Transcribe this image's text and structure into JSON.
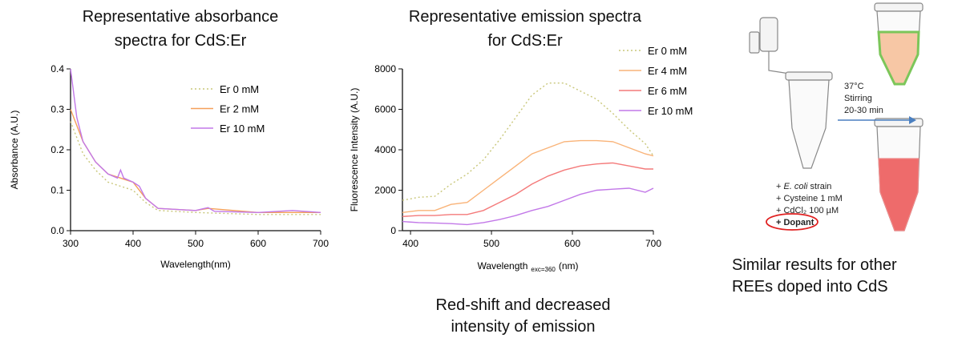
{
  "chart_data": [
    {
      "type": "line",
      "title": "Representative absorbance spectra for CdS:Er",
      "x_label": "Wavelength(nm)",
      "y_label": "Absorbance  (A.U.)",
      "xlim": [
        300,
        700
      ],
      "xticks": [
        300,
        400,
        500,
        600,
        700
      ],
      "ylim": [
        0,
        0.4
      ],
      "yticks": [
        {
          "value": 0,
          "label": "0.0"
        },
        0.1,
        0.2,
        0.3,
        0.4
      ],
      "legend": "upper right",
      "series": [
        {
          "name": "Er 0 mM",
          "color": "#c9c77a",
          "style": "dotted",
          "x": [
            300,
            320,
            340,
            360,
            380,
            400,
            420,
            440,
            500,
            600,
            700
          ],
          "values": [
            0.27,
            0.19,
            0.15,
            0.12,
            0.11,
            0.1,
            0.07,
            0.05,
            0.045,
            0.04,
            0.04
          ]
        },
        {
          "name": "Er 2 mM",
          "color": "#f5a05a",
          "style": "solid",
          "x": [
            300,
            320,
            340,
            360,
            380,
            390,
            400,
            420,
            440,
            500,
            520,
            600,
            700
          ],
          "values": [
            0.3,
            0.22,
            0.17,
            0.14,
            0.13,
            0.125,
            0.12,
            0.08,
            0.055,
            0.05,
            0.055,
            0.045,
            0.045
          ]
        },
        {
          "name": "Er 10 mM",
          "color": "#c278e8",
          "style": "solid",
          "x": [
            300,
            310,
            320,
            340,
            360,
            375,
            380,
            385,
            400,
            410,
            420,
            440,
            500,
            520,
            530,
            600,
            655,
            700
          ],
          "values": [
            0.4,
            0.28,
            0.22,
            0.17,
            0.14,
            0.13,
            0.15,
            0.13,
            0.12,
            0.11,
            0.08,
            0.055,
            0.05,
            0.057,
            0.048,
            0.045,
            0.05,
            0.045
          ]
        }
      ]
    },
    {
      "type": "line",
      "title": "Representative emission spectra for CdS:Er",
      "x_label": "Wavelength",
      "x_label_sub": "exc=360",
      "x_label_unit": "(nm)",
      "y_label": "Fluorescence Intensity  (A.U.)",
      "xlim": [
        390,
        700
      ],
      "xticks": [
        400,
        500,
        600,
        700
      ],
      "ylim": [
        0,
        8000
      ],
      "yticks": [
        0,
        2000,
        4000,
        6000,
        8000
      ],
      "legend": "upper right",
      "x": [
        390,
        410,
        430,
        450,
        470,
        490,
        510,
        530,
        550,
        570,
        590,
        610,
        630,
        650,
        670,
        690,
        700
      ],
      "series": [
        {
          "name": "Er 0 mM",
          "color": "#c9c77a",
          "style": "dotted",
          "values": [
            1500,
            1650,
            1700,
            2300,
            2800,
            3500,
            4500,
            5600,
            6700,
            7300,
            7300,
            6900,
            6500,
            5800,
            5000,
            4300,
            3700
          ]
        },
        {
          "name": "Er 4 mM",
          "color": "#f9b378",
          "style": "solid",
          "values": [
            900,
            1000,
            1000,
            1300,
            1400,
            2000,
            2600,
            3200,
            3800,
            4100,
            4400,
            4450,
            4450,
            4400,
            4100,
            3800,
            3700
          ]
        },
        {
          "name": "Er 6 mM",
          "color": "#f47a7a",
          "style": "solid",
          "values": [
            700,
            750,
            750,
            800,
            800,
            1000,
            1400,
            1800,
            2300,
            2700,
            3000,
            3200,
            3300,
            3350,
            3200,
            3050,
            3050
          ]
        },
        {
          "name": "Er 10 mM",
          "color": "#c278e8",
          "style": "solid",
          "values": [
            450,
            400,
            380,
            350,
            300,
            400,
            550,
            750,
            1000,
            1200,
            1500,
            1800,
            2000,
            2050,
            2100,
            1900,
            2100
          ]
        }
      ]
    }
  ],
  "diagram": {
    "conditions": [
      "37°C",
      "Stirring",
      "20-30 min"
    ],
    "ingredients": [
      [
        "+ ",
        "E. coli",
        " strain"
      ],
      "+ Cysteine 1 mM",
      "+ CdCl₂ 100 µM",
      "+ Dopant"
    ],
    "caption": "Similar results for other REEs doped into CdS"
  },
  "emission_caption": "Red-shift and decreased intensity of emission"
}
